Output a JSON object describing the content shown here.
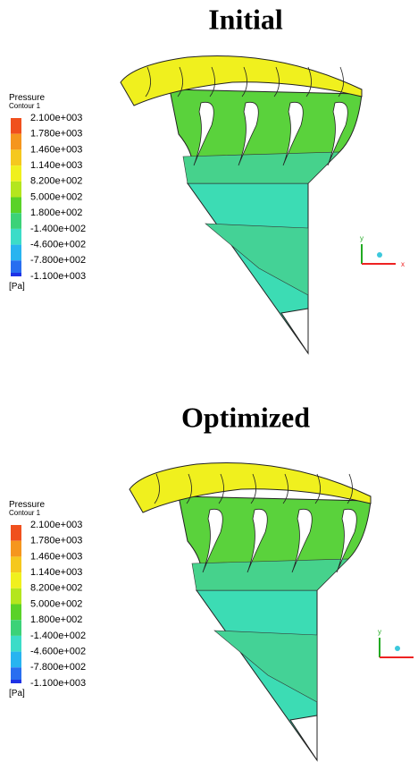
{
  "panels": [
    {
      "title": "Initial",
      "legend": {
        "title": "Pressure",
        "subtitle": "Contour 1",
        "labels": [
          "2.100e+003",
          "1.780e+003",
          "1.460e+003",
          "1.140e+003",
          "8.200e+002",
          "5.000e+002",
          "1.800e+002",
          "-1.400e+002",
          "-4.600e+002",
          "-7.800e+002",
          "-1.100e+003"
        ],
        "unit": "[Pa]"
      },
      "axes": {
        "y": "y",
        "x": "x"
      }
    },
    {
      "title": "Optimized",
      "legend": {
        "title": "Pressure",
        "subtitle": "Contour 1",
        "labels": [
          "2.100e+003",
          "1.780e+003",
          "1.460e+003",
          "1.140e+003",
          "8.200e+002",
          "5.000e+002",
          "1.800e+002",
          "-1.400e+002",
          "-4.600e+002",
          "-7.800e+002",
          "-1.100e+003"
        ],
        "unit": "[Pa]"
      },
      "axes": {
        "y": "y"
      }
    }
  ]
}
